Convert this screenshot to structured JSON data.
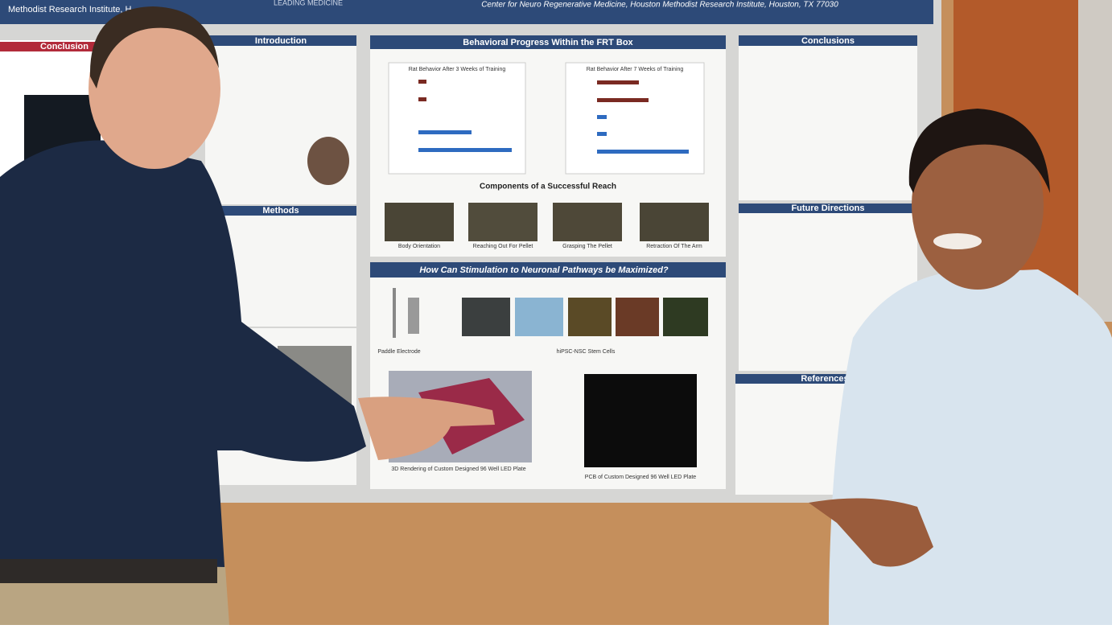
{
  "poster": {
    "header": {
      "institute": "Methodist Research Institute, H",
      "tagline": "LEADING MEDICINE",
      "center": "Center for Neuro Regenerative Medicine, Houston Methodist Research Institute, Houston, TX 77030"
    },
    "left": {
      "conclusion": "Conclusion",
      "introduction": "Introduction",
      "methods": "Methods"
    },
    "middle": {
      "title": "Behavioral Progress Within the FRT Box",
      "chart1": "Rat Behavior After 3 Weeks of Training",
      "chart2": "Rat Behavior After 7 Weeks of Training",
      "reach_title": "Components of a Successful Reach",
      "reach": [
        "Body Orientation",
        "Reaching Out For Pellet",
        "Grasping The Pellet",
        "Retraction Of The Arm"
      ],
      "stim_title": "How Can Stimulation to Neuronal Pathways be Maximized?",
      "electrode": "Paddle Electrode",
      "cells": "hiPSC-NSC Stem Cells",
      "render": "3D Rendering of Custom Designed 96 Well LED Plate",
      "pcb": "PCB of Custom Designed 96 Well LED Plate"
    },
    "right": {
      "conclusions": "Conclusions",
      "future": "Future Directions",
      "references": "References"
    }
  }
}
